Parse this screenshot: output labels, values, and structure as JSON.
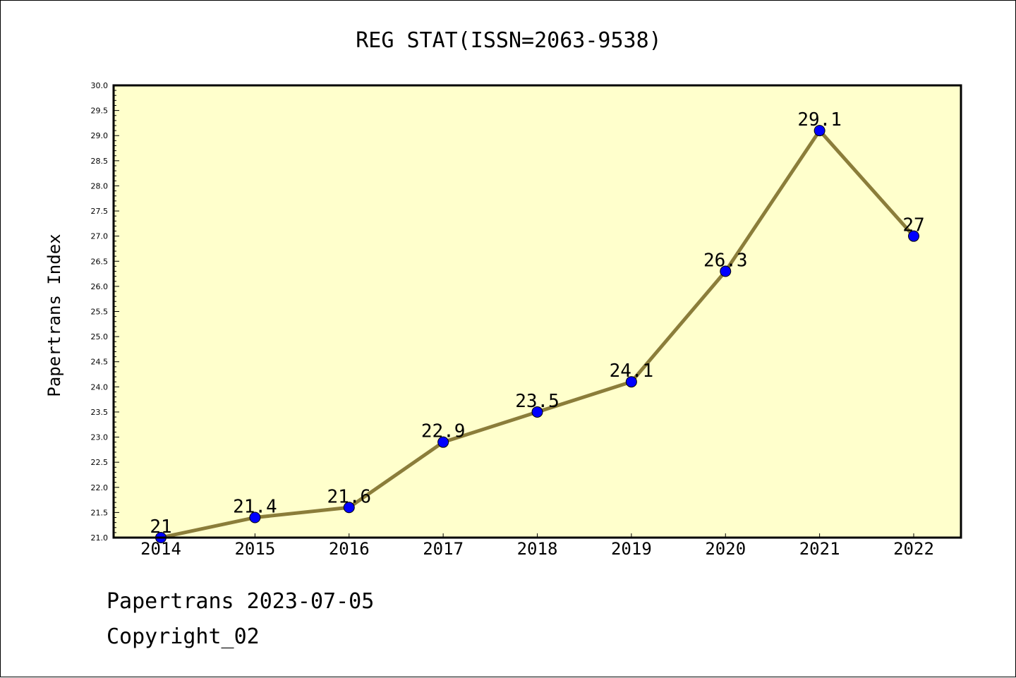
{
  "chart_data": {
    "type": "line",
    "title": "REG STAT(ISSN=2063-9538)",
    "xlabel": "",
    "ylabel": "Papertrans Index",
    "categories": [
      "2014",
      "2015",
      "2016",
      "2017",
      "2018",
      "2019",
      "2020",
      "2021",
      "2022"
    ],
    "series": [
      {
        "values": [
          21,
          21.4,
          21.6,
          22.9,
          23.5,
          24.1,
          26.3,
          29.1,
          27
        ],
        "data_labels": [
          "21",
          "21.4",
          "21.6",
          "22.9",
          "23.5",
          "24.1",
          "26.3",
          "29.1",
          "27"
        ]
      }
    ],
    "ylim": [
      21.0,
      30.0
    ],
    "yticks": [
      "21.0",
      "21.5",
      "22.0",
      "22.5",
      "23.0",
      "23.5",
      "24.0",
      "24.5",
      "25.0",
      "25.5",
      "26.0",
      "26.5",
      "27.0",
      "27.5",
      "28.0",
      "28.5",
      "29.0",
      "29.5",
      "30.0"
    ],
    "grid": false,
    "colors": {
      "plot_background": "#ffffcc",
      "line": "#8b7d3a",
      "marker": "#0000ff"
    }
  },
  "footer": {
    "line1": "Papertrans 2023-07-05",
    "line2": "Copyright_02"
  }
}
